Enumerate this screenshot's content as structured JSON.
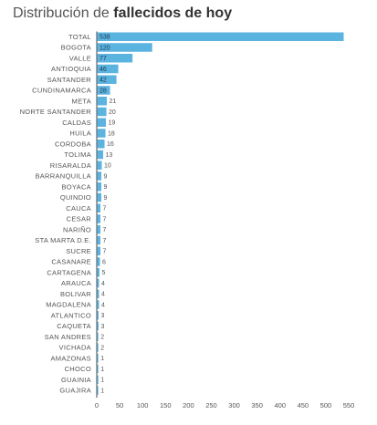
{
  "title": {
    "prefix": "Distribución de ",
    "bold": "fallecidos de hoy"
  },
  "colors": {
    "bar": "#5bb3e0",
    "axis": "#666666"
  },
  "chart_data": {
    "type": "bar",
    "orientation": "horizontal",
    "categories": [
      "TOTAL",
      "BOGOTA",
      "VALLE",
      "ANTIOQUIA",
      "SANTANDER",
      "CUNDINAMARCA",
      "META",
      "NORTE SANTANDER",
      "CALDAS",
      "HUILA",
      "CORDOBA",
      "TOLIMA",
      "RISARALDA",
      "BARRANQUILLA",
      "BOYACA",
      "QUINDIO",
      "CAUCA",
      "CESAR",
      "NARIÑO",
      "STA MARTA D.E.",
      "SUCRE",
      "CASANARE",
      "CARTAGENA",
      "ARAUCA",
      "BOLIVAR",
      "MAGDALENA",
      "ATLANTICO",
      "CAQUETA",
      "SAN ANDRES",
      "VICHADA",
      "AMAZONAS",
      "CHOCO",
      "GUAINIA",
      "GUAJIRA"
    ],
    "values": [
      538,
      120,
      77,
      46,
      42,
      28,
      21,
      20,
      19,
      18,
      16,
      13,
      10,
      9,
      9,
      9,
      7,
      7,
      7,
      7,
      7,
      6,
      5,
      4,
      4,
      4,
      3,
      3,
      2,
      2,
      1,
      1,
      1,
      1
    ],
    "xticks": [
      0,
      50,
      100,
      150,
      200,
      250,
      300,
      350,
      400,
      450,
      500,
      550
    ],
    "xlim": [
      0,
      570
    ],
    "grid": false,
    "legend": "none"
  }
}
